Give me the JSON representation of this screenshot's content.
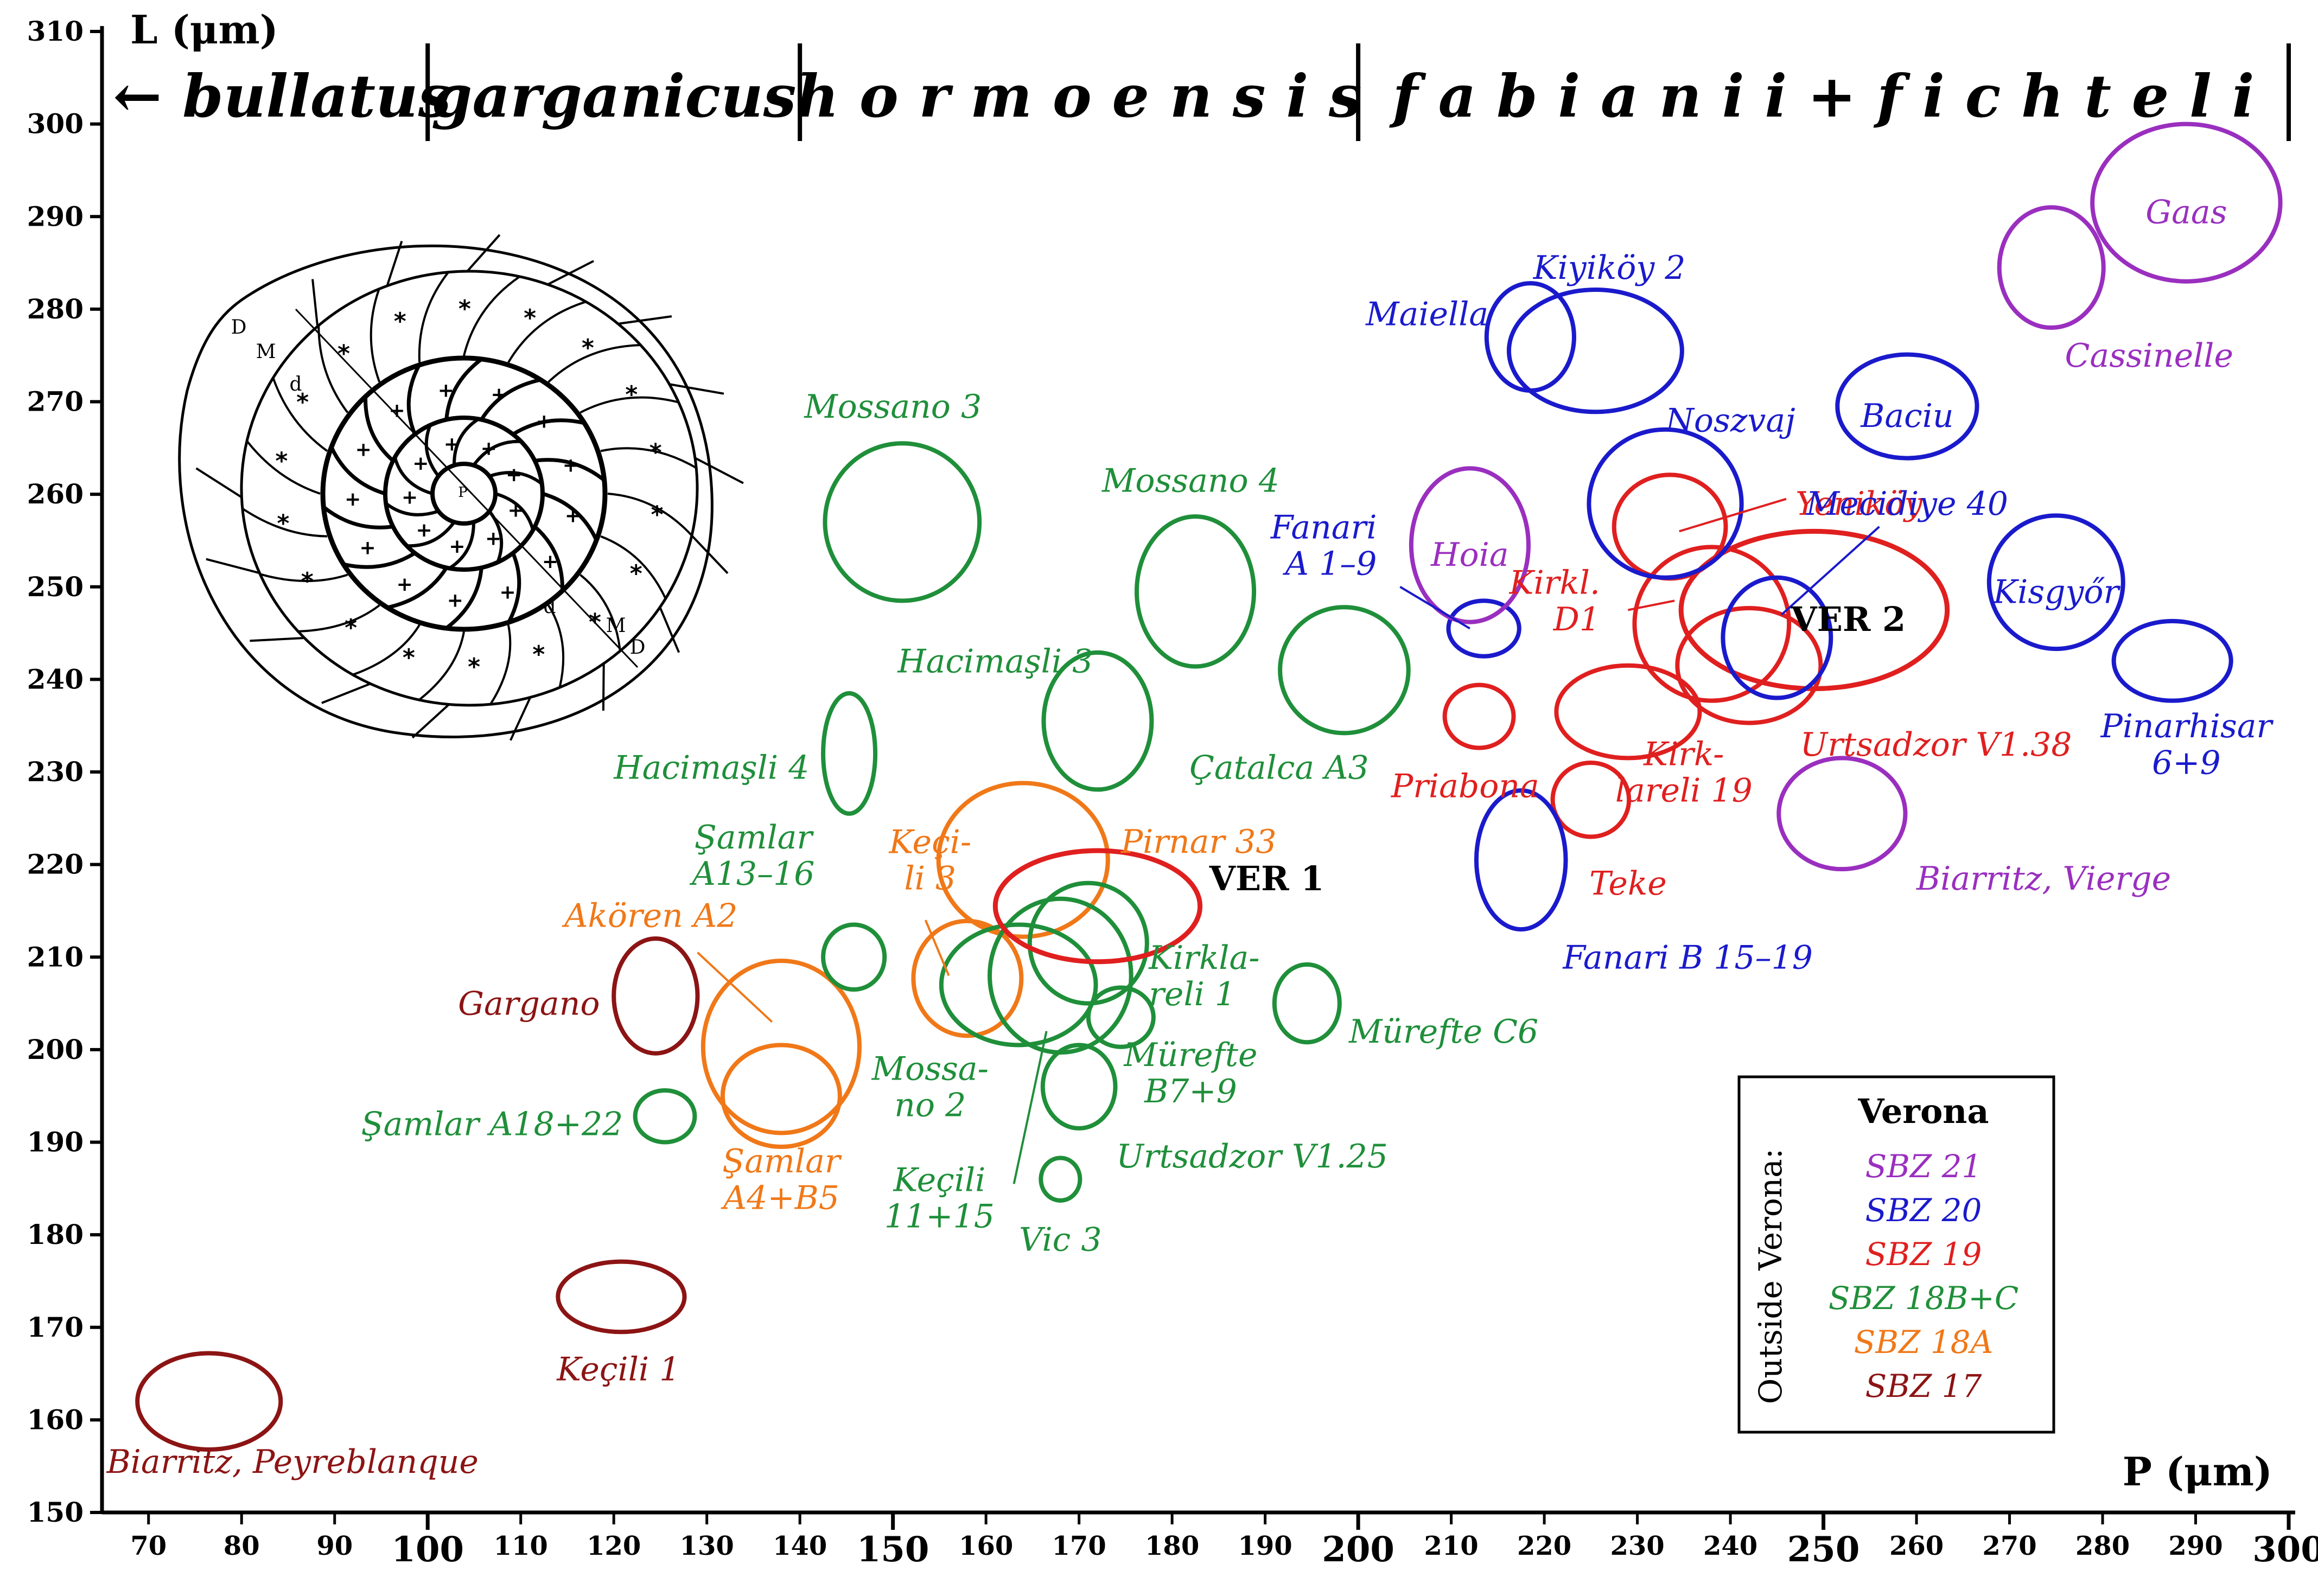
{
  "chart_data": {
    "type": "scatter",
    "title": "",
    "xlabel": "P (μm)",
    "ylabel": "L (μm)",
    "xlim": [
      65,
      300
    ],
    "ylim": [
      150,
      310
    ],
    "x_ticks": [
      70,
      80,
      90,
      100,
      110,
      120,
      130,
      140,
      150,
      160,
      170,
      180,
      190,
      200,
      210,
      220,
      230,
      240,
      250,
      260,
      270,
      280,
      290,
      300
    ],
    "x_major_ticks": [
      100,
      150,
      200,
      250,
      300
    ],
    "y_ticks": [
      150,
      160,
      170,
      180,
      190,
      200,
      210,
      220,
      230,
      240,
      250,
      260,
      270,
      280,
      290,
      300,
      310
    ],
    "grid": false,
    "zones": [
      {
        "label": "← bullatus",
        "from": 65,
        "to": 100
      },
      {
        "label": "garganicus",
        "from": 100,
        "to": 140
      },
      {
        "label": "h o r m o e n s i s",
        "from": 140,
        "to": 200
      },
      {
        "label": "f a b i a n i i + f i c h t e l i",
        "from": 200,
        "to": 300
      }
    ],
    "legend": {
      "title": "Verona",
      "side_label": "Outside Verona:",
      "placement": "bottom-right",
      "entries": [
        {
          "name": "SBZ 21",
          "color": "#9a2fbf"
        },
        {
          "name": "SBZ 20",
          "color": "#1a1acc"
        },
        {
          "name": "SBZ 19",
          "color": "#e01f1f"
        },
        {
          "name": "SBZ 18B+C",
          "color": "#1f8f3a"
        },
        {
          "name": "SBZ 18A",
          "color": "#f07818"
        },
        {
          "name": "SBZ 17",
          "color": "#8c1414"
        }
      ]
    },
    "colors": {
      "SBZ 21": "#9a2fbf",
      "SBZ 20": "#1a1acc",
      "SBZ 19": "#e01f1f",
      "SBZ 18B+C": "#1f8f3a",
      "SBZ 18A": "#f07818",
      "SBZ 17": "#8c1414",
      "Verona": "#e01f1f"
    },
    "series": [
      {
        "zone": "SBZ 17",
        "name": "Biarritz, Peyreblanque",
        "x": 76.5,
        "y": 162,
        "rx": 7.7,
        "ry": 5.2
      },
      {
        "zone": "SBZ 17",
        "name": "Keçili 1",
        "x": 120.8,
        "y": 173.3,
        "rx": 6.8,
        "ry": 3.8
      },
      {
        "zone": "SBZ 17",
        "name": "Gargano",
        "x": 124.5,
        "y": 205.8,
        "rx": 4.5,
        "ry": 6.2
      },
      {
        "zone": "SBZ 18A",
        "name": "Akören A2",
        "x": 138,
        "y": 200.3,
        "rx": 8.4,
        "ry": 9.3
      },
      {
        "zone": "SBZ 18A",
        "name": "Şamlar A4+B5",
        "x": 138,
        "y": 195,
        "rx": 6.3,
        "ry": 5.5
      },
      {
        "zone": "SBZ 18A",
        "name": "Keçili 3",
        "x": 158,
        "y": 207.7,
        "rx": 5.8,
        "ry": 6.2
      },
      {
        "zone": "SBZ 18A",
        "name": "Pirnar 33",
        "x": 164,
        "y": 220.5,
        "rx": 9.1,
        "ry": 8.3
      },
      {
        "zone": "SBZ 18B+C",
        "name": "Şamlar A18+22",
        "x": 125.5,
        "y": 192.8,
        "rx": 3.2,
        "ry": 2.8
      },
      {
        "zone": "SBZ 18B+C",
        "name": "Şamlar A13–16",
        "x": 145.8,
        "y": 210,
        "rx": 3.3,
        "ry": 3.5
      },
      {
        "zone": "SBZ 18B+C",
        "name": "Hacimaşli 4",
        "x": 145.3,
        "y": 232,
        "rx": 2.8,
        "ry": 6.5
      },
      {
        "zone": "SBZ 18B+C",
        "name": "Mossano 3",
        "x": 151,
        "y": 257,
        "rx": 8.3,
        "ry": 8.5
      },
      {
        "zone": "SBZ 18B+C",
        "name": "Mossano 4",
        "x": 182.5,
        "y": 249.5,
        "rx": 6.3,
        "ry": 8.1
      },
      {
        "zone": "SBZ 18B+C",
        "name": "Hacimaşli 3",
        "x": 172,
        "y": 235.5,
        "rx": 5.8,
        "ry": 7.4
      },
      {
        "zone": "SBZ 18B+C",
        "name": "Çatalca A3",
        "x": 198.5,
        "y": 241,
        "rx": 6.9,
        "ry": 6.8
      },
      {
        "zone": "SBZ 18B+C",
        "name": "Mossano 2",
        "x": 163.5,
        "y": 207,
        "rx": 8.3,
        "ry": 6.5
      },
      {
        "zone": "SBZ 18B+C",
        "name": "Keçili 11+15",
        "x": 168,
        "y": 208,
        "rx": 7.6,
        "ry": 8.3
      },
      {
        "zone": "SBZ 18B+C",
        "name": "Kirklareli 1",
        "x": 174.5,
        "y": 203.5,
        "rx": 3.5,
        "ry": 3.2
      },
      {
        "zone": "SBZ 18B+C",
        "name": "Mürefte B7+9",
        "x": 170,
        "y": 196,
        "rx": 3.9,
        "ry": 4.5
      },
      {
        "zone": "SBZ 18B+C",
        "name": "Vic 3",
        "x": 168,
        "y": 186,
        "rx": 2.1,
        "ry": 2.3
      },
      {
        "zone": "SBZ 18B+C",
        "name": "Mürefte C6",
        "x": 194.5,
        "y": 205,
        "rx": 3.5,
        "ry": 4.2
      },
      {
        "zone": "SBZ 18B+C",
        "name": "Urtsadzor V1.25",
        "x": 171,
        "y": 211.5,
        "rx": 6.3,
        "ry": 6.5
      },
      {
        "zone": "Verona",
        "name": "VER 1",
        "x": 172,
        "y": 215.5,
        "rx": 11,
        "ry": 6
      },
      {
        "zone": "SBZ 19",
        "name": "Priabona",
        "x": 213,
        "y": 236,
        "rx": 3.7,
        "ry": 3.4
      },
      {
        "zone": "SBZ 19",
        "name": "Kirklareli 19",
        "x": 225,
        "y": 227,
        "rx": 4.1,
        "ry": 4
      },
      {
        "zone": "SBZ 19",
        "name": "Teke",
        "x": 229,
        "y": 236.5,
        "rx": 7.7,
        "ry": 5
      },
      {
        "zone": "SBZ 19",
        "name": "Kirkl. D1",
        "x": 238,
        "y": 246,
        "rx": 8.3,
        "ry": 8.3
      },
      {
        "zone": "SBZ 19",
        "name": "Yeniköy",
        "x": 233.5,
        "y": 256.5,
        "rx": 6,
        "ry": 5.6
      },
      {
        "zone": "SBZ 19",
        "name": "Urtsadzor V1.38",
        "x": 242,
        "y": 241.5,
        "rx": 7.7,
        "ry": 6.2
      },
      {
        "zone": "Verona",
        "name": "VER 2",
        "x": 249,
        "y": 247.5,
        "rx": 14.3,
        "ry": 8.5
      },
      {
        "zone": "SBZ 20",
        "name": "Fanari A 1–9",
        "x": 213.5,
        "y": 245.5,
        "rx": 3.8,
        "ry": 3
      },
      {
        "zone": "SBZ 20",
        "name": "Fanari B 15–19",
        "x": 217.5,
        "y": 220.5,
        "rx": 4.8,
        "ry": 7.5
      },
      {
        "zone": "SBZ 20",
        "name": "Maiella",
        "x": 218.5,
        "y": 277,
        "rx": 4.7,
        "ry": 5.8
      },
      {
        "zone": "SBZ 20",
        "name": "Kiyiköy 2",
        "x": 225.5,
        "y": 275.5,
        "rx": 9.3,
        "ry": 6.6
      },
      {
        "zone": "SBZ 20",
        "name": "Noszvaj",
        "x": 233,
        "y": 259,
        "rx": 8.2,
        "ry": 8
      },
      {
        "zone": "SBZ 20",
        "name": "Mecidiye 40",
        "x": 245,
        "y": 244.5,
        "rx": 5.8,
        "ry": 6.5
      },
      {
        "zone": "SBZ 20",
        "name": "Baciu",
        "x": 259,
        "y": 269.5,
        "rx": 7.5,
        "ry": 5.6
      },
      {
        "zone": "SBZ 20",
        "name": "Kisgyőr",
        "x": 275,
        "y": 250.5,
        "rx": 7.2,
        "ry": 7.2
      },
      {
        "zone": "SBZ 20",
        "name": "Pinarhisar 6+9",
        "x": 287.5,
        "y": 242,
        "rx": 6.3,
        "ry": 4.3
      },
      {
        "zone": "SBZ 21",
        "name": "Hoia",
        "x": 212,
        "y": 254.5,
        "rx": 6.3,
        "ry": 8.3
      },
      {
        "zone": "SBZ 21",
        "name": "Biarritz, Vierge",
        "x": 252,
        "y": 225.5,
        "rx": 6.8,
        "ry": 6
      },
      {
        "zone": "SBZ 21",
        "name": "Cassinelle",
        "x": 274.5,
        "y": 284.5,
        "rx": 5.6,
        "ry": 6.5
      },
      {
        "zone": "SBZ 21",
        "name": "Gaas",
        "x": 289,
        "y": 291.5,
        "rx": 10.1,
        "ry": 8.5
      }
    ]
  },
  "labels": [
    {
      "name": "Biarritz, Peyreblanque",
      "lines": [
        "Biarritz, Peyreblanque"
      ],
      "zone": "SBZ 17",
      "x": 65.5,
      "y": 155.5,
      "anchor": "start"
    },
    {
      "name": "Keçili 1",
      "lines": [
        "Keçili 1"
      ],
      "zone": "SBZ 17",
      "x": 120.5,
      "y": 165.5,
      "anchor": "middle"
    },
    {
      "name": "Gargano",
      "lines": [
        "Gargano"
      ],
      "zone": "SBZ 17",
      "x": 118.5,
      "y": 205,
      "anchor": "end"
    },
    {
      "name": "Akören A2",
      "lines": [
        "Akören A2"
      ],
      "zone": "SBZ 18A",
      "x": 124,
      "y": 214.5,
      "anchor": "middle"
    },
    {
      "name": "Şamlar A4+B5",
      "lines": [
        "Şamlar",
        "A4+B5"
      ],
      "zone": "SBZ 18A",
      "x": 138,
      "y": 186,
      "anchor": "middle"
    },
    {
      "name": "Keçi-li 3",
      "lines": [
        "Keçi-",
        "li 3"
      ],
      "zone": "SBZ 18A",
      "x": 154,
      "y": 220.5,
      "anchor": "middle"
    },
    {
      "name": "Pirnar 33",
      "lines": [
        "Pirnar 33"
      ],
      "zone": "SBZ 18A",
      "x": 174.5,
      "y": 222.5,
      "anchor": "start"
    },
    {
      "name": "Şamlar A18+22",
      "lines": [
        "Şamlar A18+22"
      ],
      "zone": "SBZ 18B+C",
      "x": 121,
      "y": 192,
      "anchor": "end"
    },
    {
      "name": "Şamlar A13–16",
      "lines": [
        "Şamlar",
        "A13–16"
      ],
      "zone": "SBZ 18B+C",
      "x": 135,
      "y": 221,
      "anchor": "middle"
    },
    {
      "name": "Hacimaşli 4",
      "lines": [
        "Hacimaşli 4"
      ],
      "zone": "SBZ 18B+C",
      "x": 141,
      "y": 230.5,
      "anchor": "end"
    },
    {
      "name": "Mossano 3",
      "lines": [
        "Mossano 3"
      ],
      "zone": "SBZ 18B+C",
      "x": 150,
      "y": 269.5,
      "anchor": "middle"
    },
    {
      "name": "Mossano 4",
      "lines": [
        "Mossano 4"
      ],
      "zone": "SBZ 18B+C",
      "x": 182,
      "y": 261.5,
      "anchor": "middle"
    },
    {
      "name": "Hacimaşli 3",
      "lines": [
        "Hacimaşli 3"
      ],
      "zone": "SBZ 18B+C",
      "x": 161,
      "y": 242,
      "anchor": "middle"
    },
    {
      "name": "Çatalca A3",
      "lines": [
        "Çatalca A3"
      ],
      "zone": "SBZ 18B+C",
      "x": 191.5,
      "y": 230.5,
      "anchor": "middle"
    },
    {
      "name": "Kirklareli 1",
      "lines": [
        "Kirkla-",
        "reli 1"
      ],
      "zone": "SBZ 18B+C",
      "x": 177.5,
      "y": 208,
      "anchor": "start"
    },
    {
      "name": "Mürefte C6",
      "lines": [
        "Mürefte C6"
      ],
      "zone": "SBZ 18B+C",
      "x": 199,
      "y": 202,
      "anchor": "start"
    },
    {
      "name": "Mossa-no 2",
      "lines": [
        "Mossa-",
        "no 2"
      ],
      "zone": "SBZ 18B+C",
      "x": 154,
      "y": 196,
      "anchor": "middle"
    },
    {
      "name": "Mürefte B7+9",
      "lines": [
        "Mürefte",
        "B7+9"
      ],
      "zone": "SBZ 18B+C",
      "x": 182,
      "y": 197.5,
      "anchor": "middle"
    },
    {
      "name": "Urtsadzor V1.25",
      "lines": [
        "Urtsadzor V1.25"
      ],
      "zone": "SBZ 18B+C",
      "x": 174,
      "y": 188.5,
      "anchor": "start"
    },
    {
      "name": "Keçili 11+15",
      "lines": [
        "Keçili",
        "11+15"
      ],
      "zone": "SBZ 18B+C",
      "x": 155,
      "y": 184,
      "anchor": "middle"
    },
    {
      "name": "Vic 3",
      "lines": [
        "Vic 3"
      ],
      "zone": "SBZ 18B+C",
      "x": 168,
      "y": 179.5,
      "anchor": "middle"
    },
    {
      "name": "Priabona",
      "lines": [
        "Priabona"
      ],
      "zone": "SBZ 19",
      "x": 211.5,
      "y": 228.5,
      "anchor": "middle"
    },
    {
      "name": "Kirk-lareli 19",
      "lines": [
        "Kirk-",
        "lareli 19"
      ],
      "zone": "SBZ 19",
      "x": 235,
      "y": 230,
      "anchor": "middle"
    },
    {
      "name": "Teke",
      "lines": [
        "Teke"
      ],
      "zone": "SBZ 19",
      "x": 229,
      "y": 218,
      "anchor": "middle"
    },
    {
      "name": "Kirkl. D1",
      "lines": [
        "Kirkl.",
        "D1"
      ],
      "zone": "SBZ 19",
      "x": 226,
      "y": 248.5,
      "anchor": "end"
    },
    {
      "name": "Yeniköy",
      "lines": [
        "Yeniköy"
      ],
      "zone": "SBZ 19",
      "x": 247,
      "y": 259,
      "anchor": "start"
    },
    {
      "name": "Urtsadzor V1.38",
      "lines": [
        "Urtsadzor V1.38"
      ],
      "zone": "SBZ 19",
      "x": 247.5,
      "y": 233,
      "anchor": "start"
    },
    {
      "name": "Fanari A 1–9",
      "lines": [
        "Fanari",
        "A 1–9"
      ],
      "zone": "SBZ 20",
      "x": 202,
      "y": 254.5,
      "anchor": "end"
    },
    {
      "name": "Fanari B 15–19",
      "lines": [
        "Fanari B 15–19"
      ],
      "zone": "SBZ 20",
      "x": 222,
      "y": 210,
      "anchor": "start"
    },
    {
      "name": "Maiella",
      "lines": [
        "Maiella"
      ],
      "zone": "SBZ 20",
      "x": 214,
      "y": 279.5,
      "anchor": "end"
    },
    {
      "name": "Kiyiköy 2",
      "lines": [
        "Kiyiköy 2"
      ],
      "zone": "SBZ 20",
      "x": 227,
      "y": 284.5,
      "anchor": "middle"
    },
    {
      "name": "Noszvaj",
      "lines": [
        "Noszvaj"
      ],
      "zone": "SBZ 20",
      "x": 240,
      "y": 268,
      "anchor": "middle"
    },
    {
      "name": "Mecidiye 40",
      "lines": [
        "Mecidiye 40"
      ],
      "zone": "SBZ 20",
      "x": 259,
      "y": 259,
      "anchor": "middle"
    },
    {
      "name": "Baciu",
      "lines": [
        "Baciu"
      ],
      "zone": "SBZ 20",
      "x": 259,
      "y": 268.5,
      "anchor": "middle"
    },
    {
      "name": "Kisgyőr",
      "lines": [
        "Kisgyőr"
      ],
      "zone": "SBZ 20",
      "x": 275,
      "y": 249.5,
      "anchor": "middle"
    },
    {
      "name": "Pinarhisar 6+9",
      "lines": [
        "Pinarhisar",
        "6+9"
      ],
      "zone": "SBZ 20",
      "x": 289,
      "y": 233,
      "anchor": "middle"
    },
    {
      "name": "Hoia",
      "lines": [
        "Hoia"
      ],
      "zone": "SBZ 21",
      "x": 212,
      "y": 253.5,
      "anchor": "middle"
    },
    {
      "name": "Biarritz, Vierge",
      "lines": [
        "Biarritz, Vierge"
      ],
      "zone": "SBZ 21",
      "x": 260,
      "y": 218.5,
      "anchor": "start"
    },
    {
      "name": "Cassinelle",
      "lines": [
        "Cassinelle"
      ],
      "zone": "SBZ 21",
      "x": 285,
      "y": 275,
      "anchor": "middle"
    },
    {
      "name": "Gaas",
      "lines": [
        "Gaas"
      ],
      "zone": "SBZ 21",
      "x": 289,
      "y": 290.5,
      "anchor": "middle"
    },
    {
      "name": "VER 1",
      "lines": [
        "VER 1"
      ],
      "zone": "black",
      "x": 184,
      "y": 218.5,
      "anchor": "start",
      "bold": true
    },
    {
      "name": "VER 2",
      "lines": [
        "VER 2"
      ],
      "zone": "black",
      "x": 246.5,
      "y": 246.5,
      "anchor": "start",
      "bold": true
    }
  ],
  "leaders": [
    {
      "zone": "SBZ 18A",
      "from": [
        129,
        210.5
      ],
      "to": [
        137,
        203
      ]
    },
    {
      "zone": "SBZ 18A",
      "from": [
        153.5,
        214
      ],
      "to": [
        156,
        208
      ]
    },
    {
      "zone": "SBZ 18B+C",
      "from": [
        166.5,
        202
      ],
      "to": [
        163,
        185.5
      ]
    },
    {
      "zone": "SBZ 20",
      "from": [
        204.5,
        250
      ],
      "to": [
        212,
        245.5
      ]
    },
    {
      "zone": "SBZ 19",
      "from": [
        229,
        247.5
      ],
      "to": [
        234,
        248.5
      ]
    },
    {
      "zone": "SBZ 19",
      "from": [
        246,
        259.5
      ],
      "to": [
        234.5,
        256
      ]
    },
    {
      "zone": "SBZ 20",
      "from": [
        256,
        256.5
      ],
      "to": [
        245.5,
        247
      ]
    }
  ],
  "specimen_drawing": {
    "labels": [
      "D",
      "M",
      "d",
      "P",
      "d",
      "M",
      "D"
    ]
  }
}
